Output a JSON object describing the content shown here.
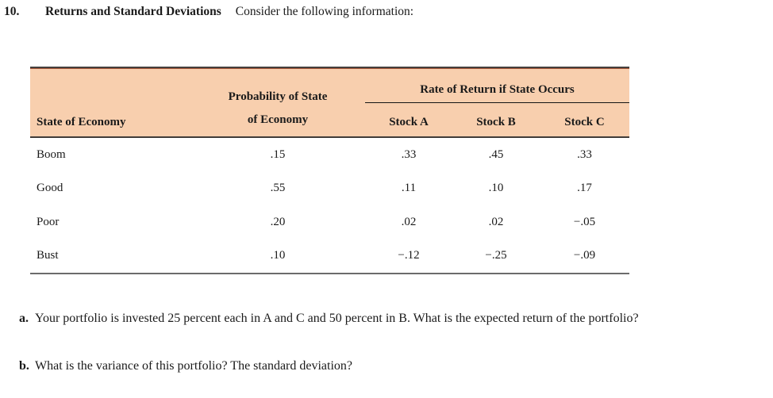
{
  "problem": {
    "number": "10.",
    "title": "Returns and Standard Deviations",
    "intro": "Consider the following information:"
  },
  "table": {
    "header_bg_color": "#f8cfae",
    "accent_rule_color": "#a8593a",
    "state_column_header": "State of Economy",
    "probability_header_line1": "Probability of State",
    "probability_header_line2": "of Economy",
    "rate_span_header": "Rate of Return if State Occurs",
    "stock_headers": [
      "Stock A",
      "Stock B",
      "Stock C"
    ],
    "rows": [
      {
        "state": "Boom",
        "prob": ".15",
        "stock_a": ".33",
        "stock_b": ".45",
        "stock_c": ".33"
      },
      {
        "state": "Good",
        "prob": ".55",
        "stock_a": ".11",
        "stock_b": ".10",
        "stock_c": ".17"
      },
      {
        "state": "Poor",
        "prob": ".20",
        "stock_a": ".02",
        "stock_b": ".02",
        "stock_c": "−.05"
      },
      {
        "state": "Bust",
        "prob": ".10",
        "stock_a": "−.12",
        "stock_b": "−.25",
        "stock_c": "−.09"
      }
    ]
  },
  "questions": [
    {
      "label": "a.",
      "text": "Your portfolio is invested 25 percent each in A and C and 50 percent in B. What is the expected return of the portfolio?"
    },
    {
      "label": "b.",
      "text": "What is the variance of this portfolio? The standard deviation?"
    }
  ]
}
